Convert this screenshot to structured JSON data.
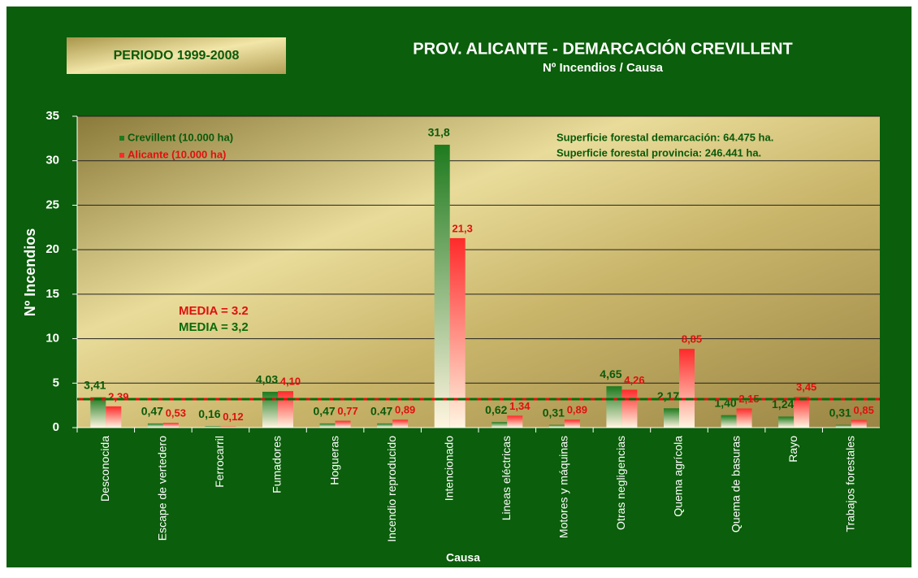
{
  "chart_data": {
    "type": "bar",
    "period": "PERIODO 1999-2008",
    "title": "PROV. ALICANTE - DEMARCACIÓN CREVILLENT",
    "subtitle": "Nº Incendios / Causa",
    "y_label": "Nº Incendios",
    "x_label": "Causa",
    "annotations": [
      "Superficie forestal demarcación: 64.475 ha.",
      "Superficie forestal provincia: 246.441 ha."
    ],
    "mean_lines": [
      {
        "label": "MEDIA = 3.2",
        "value": 3.2,
        "color": "#e01010"
      },
      {
        "label": "MEDIA = 3,2",
        "value": 3.2,
        "color": "#0a6a0a"
      }
    ],
    "categories": [
      "Desconocida",
      "Escape de vertedero",
      "Ferrocarril",
      "Fumadores",
      "Hogueras",
      "Incendio reproducido",
      "Intencionado",
      "Lineas eléctricas",
      "Motores y máquinas",
      "Otras negligencias",
      "Quema agrícola",
      "Quema de basuras",
      "Rayo",
      "Trabajos forestales"
    ],
    "series": [
      {
        "name": "Crevillent (10.000 ha)",
        "color": "#1e7a1e",
        "values": [
          3.41,
          0.47,
          0.16,
          4.03,
          0.47,
          0.47,
          31.8,
          0.62,
          0.31,
          4.65,
          2.17,
          1.4,
          1.24,
          0.31
        ],
        "value_labels": [
          "3,41",
          "0,47",
          "0,16",
          "4,03",
          "0,47",
          "0.47",
          "31,8",
          "0,62",
          "0,31",
          "4,65",
          "2,17",
          "1,40",
          "1,24",
          "0,31"
        ]
      },
      {
        "name": "Alicante (10.000 ha)",
        "color": "#ff2a2a",
        "values": [
          2.39,
          0.53,
          0.12,
          4.1,
          0.77,
          0.89,
          21.3,
          1.34,
          0.89,
          4.26,
          8.85,
          2.15,
          3.45,
          0.85
        ],
        "value_labels": [
          "2,39",
          "0,53",
          "0,12",
          "4,10",
          "0,77",
          "0,89",
          "21,3",
          "1,34",
          "0,89",
          "4,26",
          "8,85",
          "2,15",
          "3,45",
          "0,85"
        ]
      }
    ],
    "ylim": [
      0,
      35
    ],
    "yticks": [
      0,
      5,
      10,
      15,
      20,
      25,
      30,
      35
    ],
    "grid": true
  }
}
